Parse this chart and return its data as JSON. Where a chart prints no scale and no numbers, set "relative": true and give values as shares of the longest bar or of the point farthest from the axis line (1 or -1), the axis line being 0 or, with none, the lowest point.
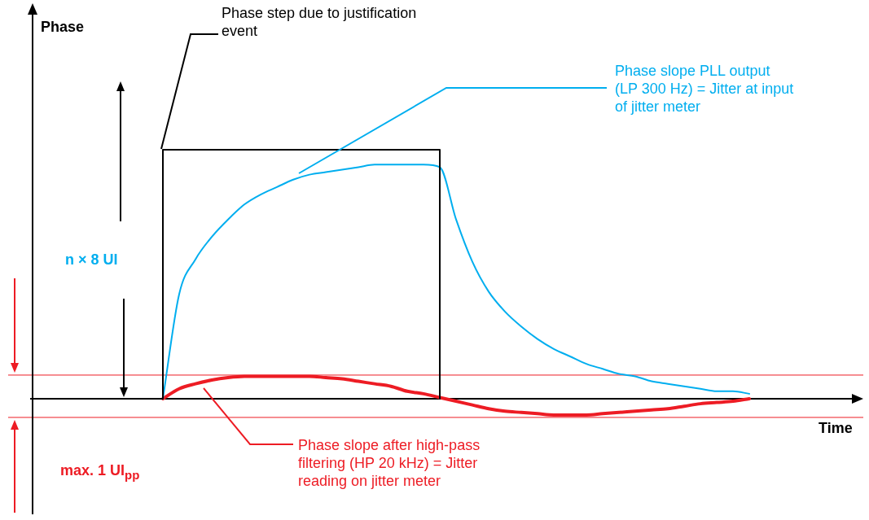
{
  "chart_data": {
    "type": "line",
    "relative": true,
    "xlabel": "Time",
    "legend": false,
    "categories": [
      null,
      null,
      null,
      null,
      null,
      null,
      null,
      null,
      null,
      null,
      null,
      null,
      null,
      null,
      null,
      null,
      null,
      null,
      null,
      null,
      null,
      null,
      null,
      null,
      null,
      null,
      null,
      null,
      null,
      null,
      null,
      null,
      null,
      null,
      null,
      null,
      null,
      null,
      null,
      null,
      null,
      null,
      null,
      null,
      null,
      null,
      null,
      null,
      null,
      null,
      null
    ],
    "series": [
      {
        "type": "step",
        "color": "#000000",
        "values": [
          null,
          null,
          null,
          null,
          null,
          null,
          null,
          0,
          1,
          1,
          1,
          1,
          1,
          1,
          1,
          1,
          1,
          1,
          1,
          1,
          1,
          1,
          1,
          1,
          1,
          0,
          null,
          null,
          null,
          null,
          null,
          null,
          null,
          null,
          null,
          null,
          null,
          null,
          null,
          null,
          null,
          null,
          null,
          null,
          null,
          null,
          null,
          null,
          null,
          null,
          null
        ]
      },
      {
        "color": "#00aeef",
        "values": [
          null,
          null,
          null,
          null,
          null,
          null,
          null,
          null,
          0,
          0.42,
          0.56,
          0.65,
          0.72,
          0.78,
          0.82,
          0.85,
          0.88,
          0.9,
          0.91,
          0.92,
          0.93,
          0.94,
          0.94,
          0.94,
          0.94,
          0.93,
          0.72,
          0.55,
          0.43,
          0.35,
          0.29,
          0.24,
          0.2,
          0.17,
          0.14,
          0.12,
          0.1,
          0.09,
          0.07,
          0.06,
          0.05,
          0.04,
          0.03,
          0.03,
          0.02,
          null,
          null,
          null,
          null,
          null,
          null
        ]
      },
      {
        "color": "#ed1c24",
        "values": [
          null,
          null,
          null,
          null,
          null,
          null,
          null,
          null,
          0,
          0.04,
          0.06,
          0.075,
          0.085,
          0.09,
          0.09,
          0.09,
          0.09,
          0.09,
          0.085,
          0.08,
          0.07,
          0.06,
          0.05,
          0.03,
          0.02,
          0.005,
          -0.01,
          -0.025,
          -0.04,
          -0.05,
          -0.055,
          -0.06,
          -0.065,
          -0.065,
          -0.065,
          -0.06,
          -0.055,
          -0.05,
          -0.045,
          -0.04,
          -0.03,
          -0.02,
          -0.015,
          -0.01,
          0,
          null,
          null,
          null,
          null,
          null,
          null
        ]
      }
    ],
    "ref_lines": [
      {
        "axis": "y",
        "value": 0.095,
        "color": "#ed1c24"
      },
      {
        "axis": "y",
        "value": -0.075,
        "color": "#ed1c24"
      }
    ],
    "annotations": [
      "Phase step due to justification event",
      "Phase slope PLL output (LP 300 Hz) = Jitter at input of jitter meter",
      "n × 8 UI",
      "Phase slope after high-pass filtering (HP 20 kHz) = Jitter reading on jitter meter",
      "max. 1 UI$_{pp}$",
      "Phase"
    ]
  }
}
